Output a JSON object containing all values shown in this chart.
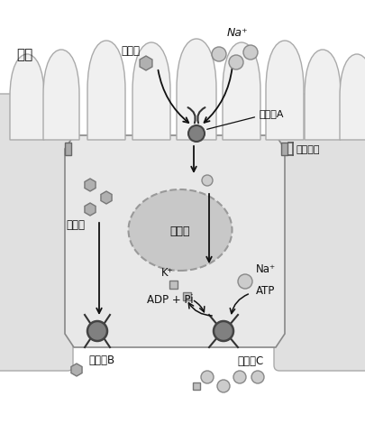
{
  "bg_color": "#ffffff",
  "lumen_color": "#ffffff",
  "cell_fill": "#e8e8e8",
  "cell_stroke": "#888888",
  "villus_fill": "#f0f0f0",
  "villus_stroke": "#aaaaaa",
  "side_cell_fill": "#e0e0e0",
  "side_cell_stroke": "#aaaaaa",
  "nucleus_fill": "#c8c8c8",
  "nucleus_stroke": "#999999",
  "protein_fill": "#808080",
  "protein_stroke": "#444444",
  "glucose_fill": "#b0b0b0",
  "glucose_stroke": "#777777",
  "na_fill": "#cccccc",
  "na_stroke": "#888888",
  "square_fill": "#c0c0c0",
  "square_stroke": "#777777",
  "arrow_color": "#111111",
  "text_color": "#111111",
  "label_changqiang": "肠腔",
  "label_protein_a": "蛋白质A",
  "label_protein_b": "蛋白质B",
  "label_protein_c": "蛋白质C",
  "label_glucose": "葡萄糖",
  "label_na_lumen": "Na⁺",
  "label_k_plus": "K⁺",
  "label_na_pump": "Na⁺",
  "label_atp": "ATP",
  "label_adp_pi": "ADP + Pi",
  "label_nucleus": "细胞核",
  "label_tight_junction": "紧密连接"
}
